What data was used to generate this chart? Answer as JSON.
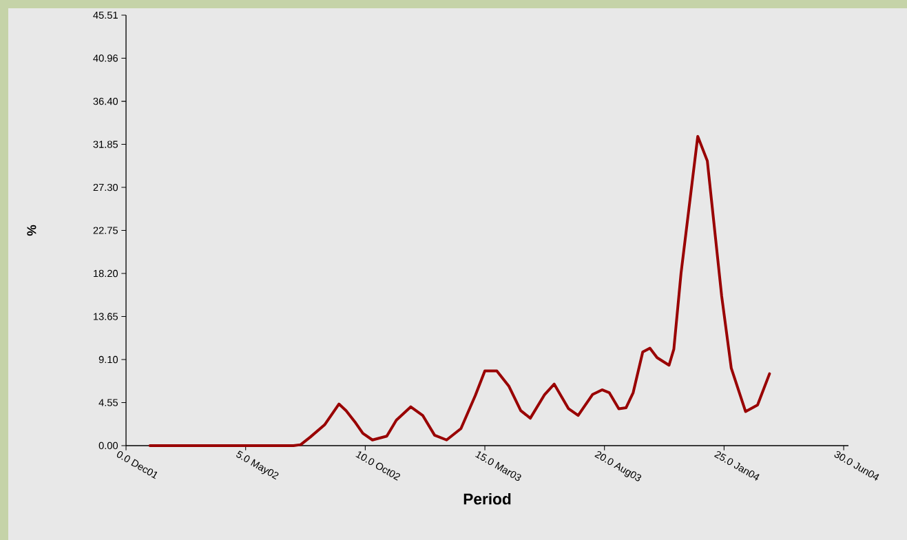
{
  "chart_data": {
    "type": "line",
    "xlabel": "Period",
    "ylabel": "%",
    "x": [
      1,
      7,
      7.3,
      7.7,
      8.3,
      8.9,
      9.2,
      9.6,
      9.9,
      10.3,
      10.9,
      11.3,
      11.9,
      12.4,
      12.9,
      13.4,
      14,
      14.6,
      15,
      15.5,
      16,
      16.5,
      16.9,
      17.5,
      17.9,
      18.5,
      18.9,
      19.5,
      19.9,
      20.2,
      20.6,
      20.9,
      21.2,
      21.6,
      21.9,
      22.2,
      22.7,
      22.9,
      23.2,
      23.9,
      24.3,
      24.9,
      25.3,
      25.9,
      26.4,
      26.9
    ],
    "values": [
      0,
      0,
      0.1,
      0.9,
      2.2,
      4.4,
      3.7,
      2.4,
      1.3,
      0.6,
      1.0,
      2.7,
      4.1,
      3.2,
      1.1,
      0.6,
      1.8,
      5.3,
      7.9,
      7.9,
      6.3,
      3.7,
      2.9,
      5.4,
      6.5,
      3.9,
      3.2,
      5.4,
      5.9,
      5.6,
      3.9,
      4.0,
      5.6,
      9.9,
      10.3,
      9.3,
      8.5,
      10.2,
      18.2,
      32.7,
      30.1,
      15.8,
      8.2,
      3.6,
      4.3,
      7.6
    ],
    "color": "#990000",
    "xlim": [
      0,
      30.2
    ],
    "ylim": [
      0,
      45.51
    ],
    "xticks": [
      {
        "value": 0,
        "label": "0.0"
      },
      {
        "value": 5,
        "label": "5.0"
      },
      {
        "value": 10,
        "label": "10.0"
      },
      {
        "value": 15,
        "label": "15.0"
      },
      {
        "value": 20,
        "label": "20.0"
      },
      {
        "value": 25,
        "label": "25.0"
      },
      {
        "value": 30,
        "label": "30.0"
      }
    ],
    "annotations": [
      "Dec01",
      "May02",
      "Oct02",
      "Mar03",
      "Aug03",
      "Jan04",
      "Jun04"
    ],
    "yticks": [
      {
        "value": 0,
        "label": "0.00"
      },
      {
        "value": 4.55,
        "label": "4.55"
      },
      {
        "value": 9.1,
        "label": "9.10"
      },
      {
        "value": 13.65,
        "label": "13.65"
      },
      {
        "value": 18.2,
        "label": "18.20"
      },
      {
        "value": 22.75,
        "label": "22.75"
      },
      {
        "value": 27.3,
        "label": "27.30"
      },
      {
        "value": 31.85,
        "label": "31.85"
      },
      {
        "value": 36.4,
        "label": "36.40"
      },
      {
        "value": 40.96,
        "label": "40.96"
      },
      {
        "value": 45.51,
        "label": "45.51"
      }
    ]
  }
}
